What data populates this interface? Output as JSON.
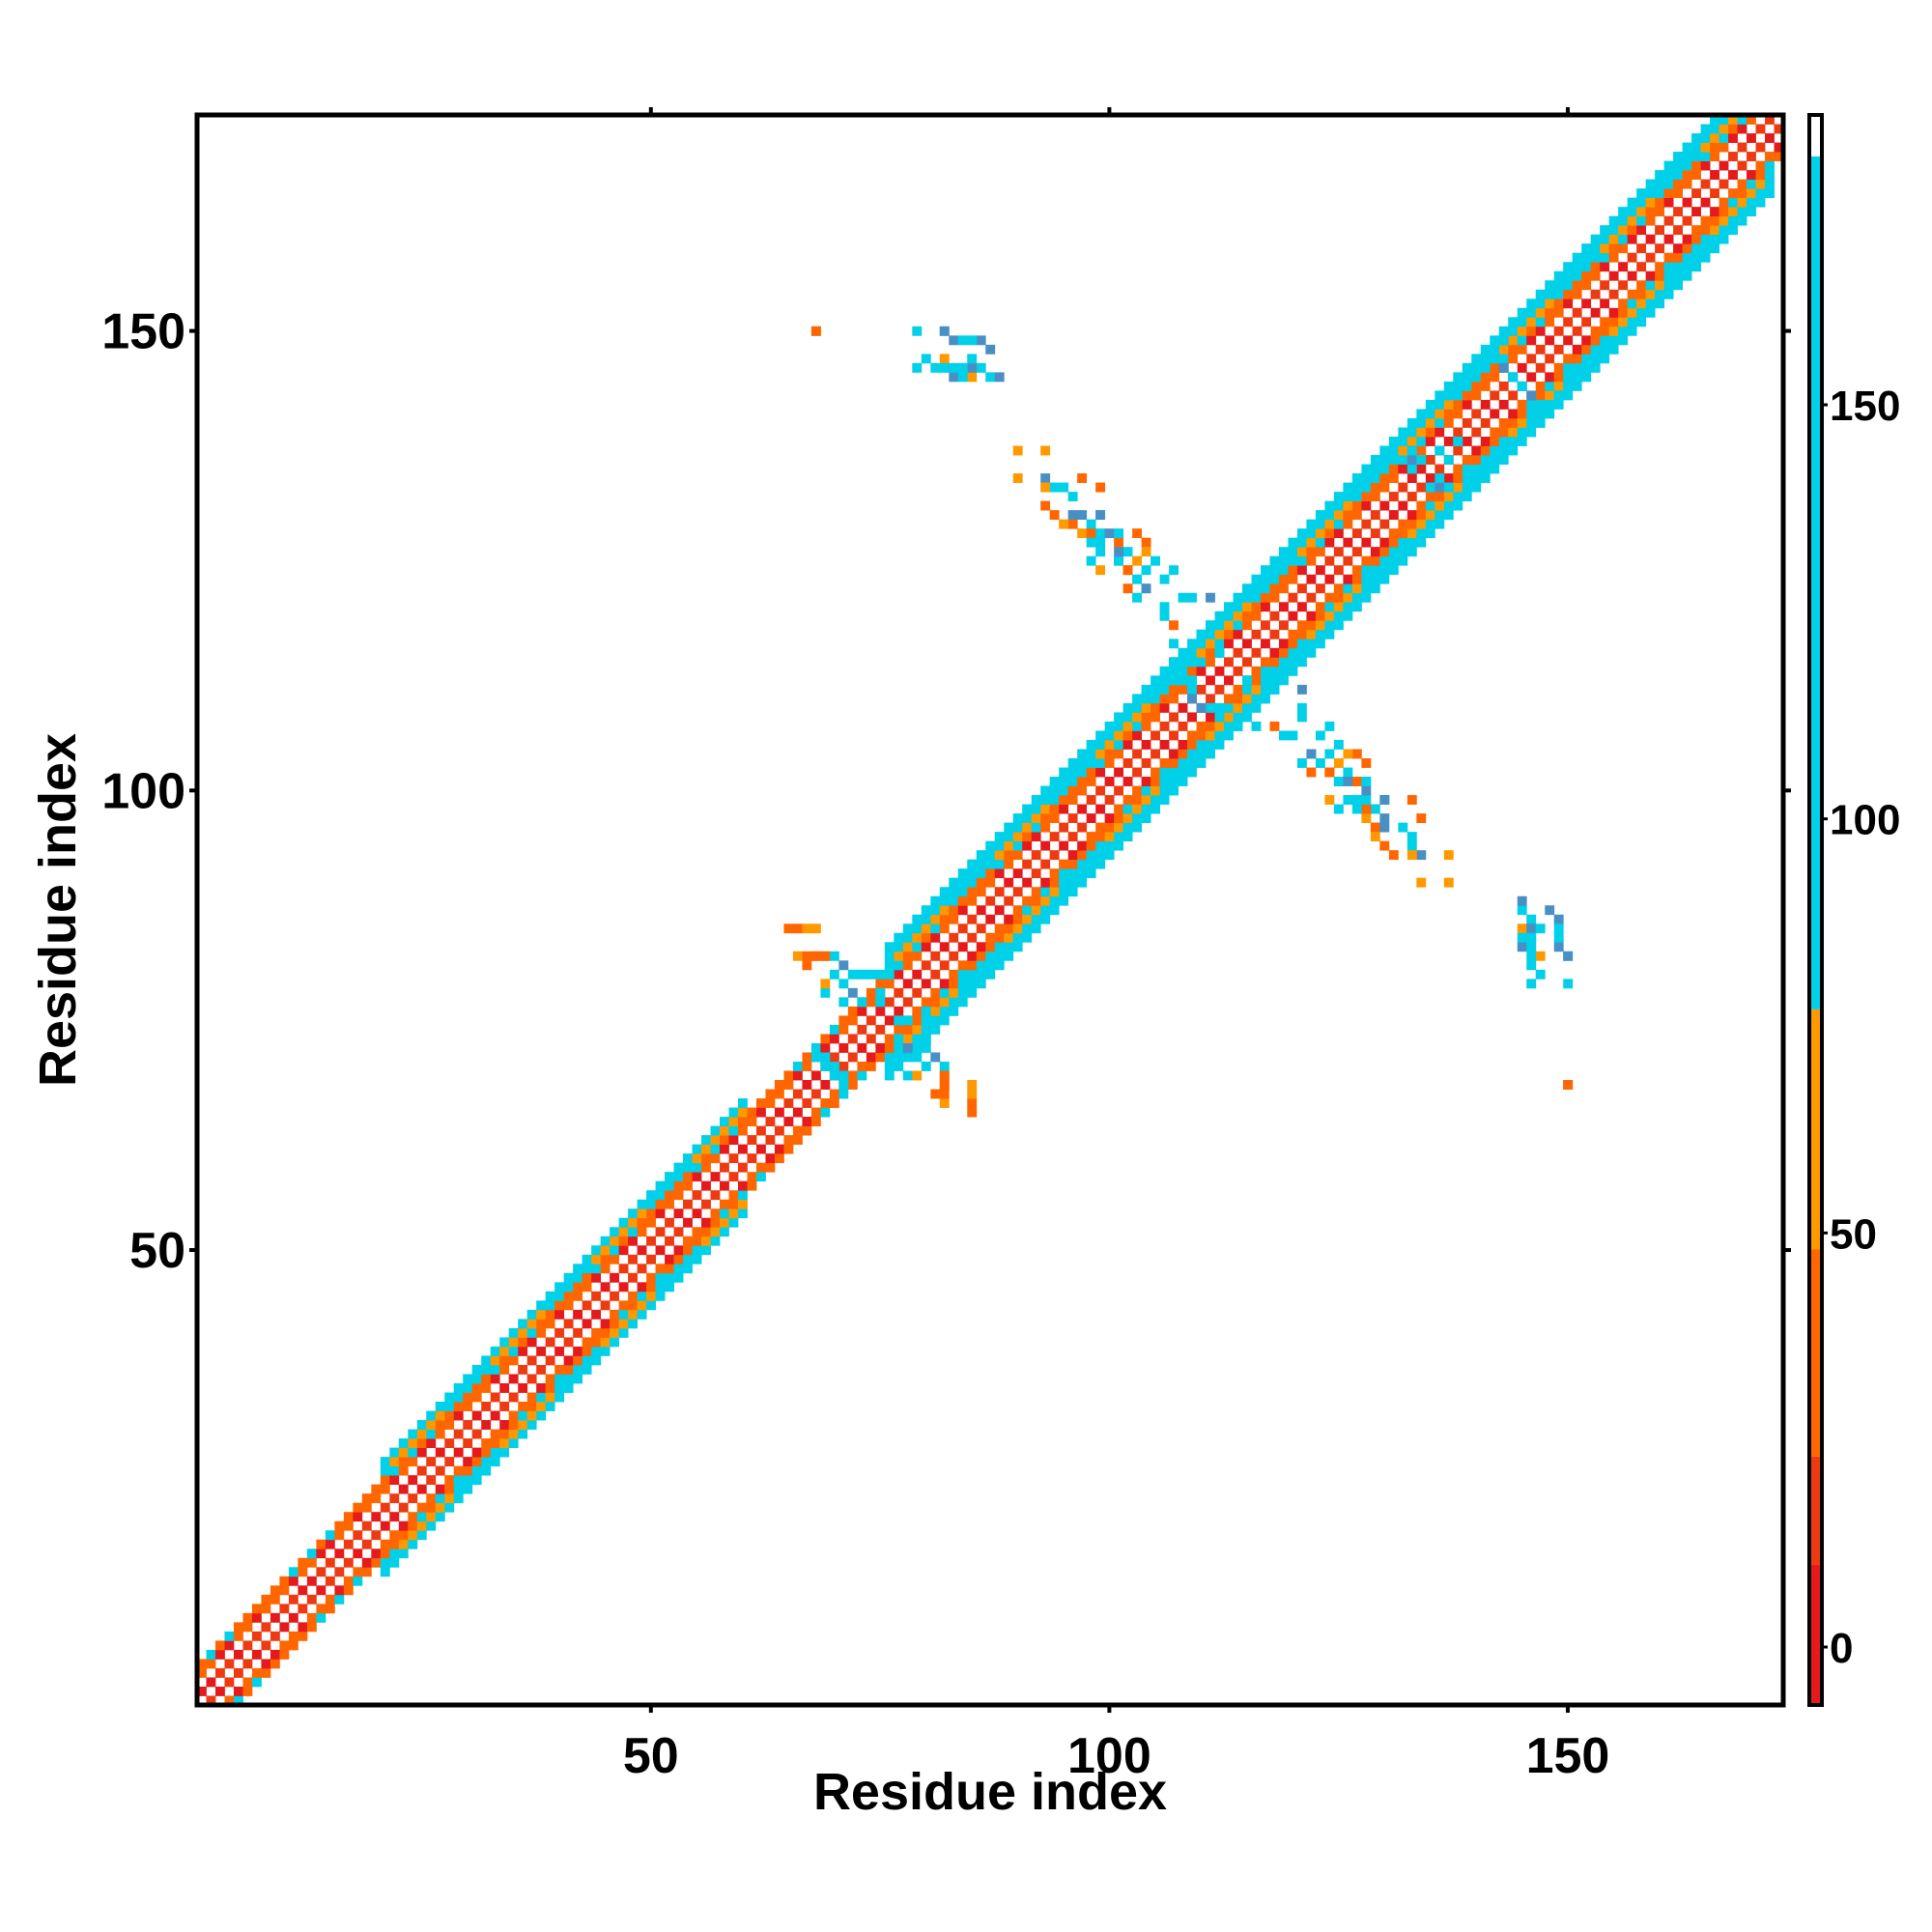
{
  "chart_data": {
    "type": "heatmap",
    "title": "",
    "xlabel": "Residue index",
    "ylabel": "Residue index",
    "xlim": [
      1,
      173
    ],
    "ylim": [
      1,
      173
    ],
    "x_ticks": [
      50,
      100,
      150
    ],
    "y_ticks": [
      50,
      100,
      150
    ],
    "grid": false,
    "colorbar": {
      "range": [
        -7,
        185
      ],
      "ticks": [
        0,
        50,
        100,
        150
      ],
      "bands": [
        {
          "from": -7,
          "to": 10,
          "color": "#e41a1c"
        },
        {
          "from": 10,
          "to": 23,
          "color": "#ee3a12"
        },
        {
          "from": 23,
          "to": 48,
          "color": "#ff6600"
        },
        {
          "from": 48,
          "to": 77,
          "color": "#ff9900"
        },
        {
          "from": 77,
          "to": 180,
          "color": "#00d0e8"
        },
        {
          "from": 180,
          "to": 185,
          "color": "#ffffff"
        }
      ]
    },
    "palette": {
      "red": "#e41a1c",
      "redorange": "#ee3a12",
      "orange": "#ff6600",
      "amber": "#ff9900",
      "cyan": "#00d0e8",
      "steelblue": "#4a8fc4"
    },
    "diagonal_band": [
      {
        "from": 1,
        "to": 20,
        "half_width": 4
      },
      {
        "from": 20,
        "to": 60,
        "half_width": 6
      },
      {
        "from": 60,
        "to": 75,
        "half_width": 4
      },
      {
        "from": 75,
        "to": 172,
        "half_width": 7
      }
    ],
    "off_diagonal_contacts": [
      {
        "i": 68,
        "j": 150,
        "c": "orange"
      },
      {
        "i": 79,
        "j": 150,
        "c": "cyan"
      },
      {
        "i": 82,
        "j": 150,
        "c": "cyan"
      },
      {
        "i": 83,
        "j": 149,
        "c": "steelblue"
      },
      {
        "i": 86,
        "j": 149,
        "c": "steelblue"
      },
      {
        "i": 80,
        "j": 147,
        "c": "cyan"
      },
      {
        "i": 82,
        "j": 147,
        "c": "amber"
      },
      {
        "i": 83,
        "j": 146,
        "c": "orange"
      },
      {
        "i": 84,
        "j": 146,
        "c": "cyan"
      },
      {
        "i": 85,
        "j": 146,
        "c": "cyan"
      },
      {
        "i": 79,
        "j": 146,
        "c": "cyan"
      },
      {
        "i": 81,
        "j": 146,
        "c": "cyan"
      },
      {
        "i": 83,
        "j": 145,
        "c": "steelblue"
      },
      {
        "i": 87,
        "j": 145,
        "c": "cyan"
      },
      {
        "i": 90,
        "j": 137,
        "c": "amber"
      },
      {
        "i": 90,
        "j": 134,
        "c": "amber"
      },
      {
        "i": 93,
        "j": 134,
        "c": "steelblue"
      },
      {
        "i": 97,
        "j": 134,
        "c": "orange"
      },
      {
        "i": 94,
        "j": 133,
        "c": "cyan"
      },
      {
        "i": 93,
        "j": 131,
        "c": "orange"
      },
      {
        "i": 94,
        "j": 130,
        "c": "orange"
      },
      {
        "i": 97,
        "j": 130,
        "c": "steelblue"
      },
      {
        "i": 99,
        "j": 130,
        "c": "cyan"
      },
      {
        "i": 96,
        "j": 129,
        "c": "orange"
      },
      {
        "i": 98,
        "j": 129,
        "c": "cyan"
      },
      {
        "i": 97,
        "j": 128,
        "c": "amber"
      },
      {
        "i": 98,
        "j": 128,
        "c": "orange"
      },
      {
        "i": 99,
        "j": 128,
        "c": "cyan"
      },
      {
        "i": 100,
        "j": 128,
        "c": "steelblue"
      },
      {
        "i": 103,
        "j": 128,
        "c": "orange"
      },
      {
        "i": 99,
        "j": 127,
        "c": "cyan"
      },
      {
        "i": 101,
        "j": 127,
        "c": "orange"
      },
      {
        "i": 104,
        "j": 127,
        "c": "orange"
      },
      {
        "i": 102,
        "j": 126,
        "c": "cyan"
      },
      {
        "i": 104,
        "j": 126,
        "c": "amber"
      },
      {
        "i": 101,
        "j": 125,
        "c": "orange"
      },
      {
        "i": 102,
        "j": 124,
        "c": "orange"
      },
      {
        "i": 104,
        "j": 124,
        "c": "cyan"
      },
      {
        "i": 105,
        "j": 125,
        "c": "cyan"
      },
      {
        "i": 107,
        "j": 124,
        "c": "cyan"
      },
      {
        "i": 104,
        "j": 122,
        "c": "cyan"
      },
      {
        "i": 108,
        "j": 121,
        "c": "cyan"
      },
      {
        "i": 109,
        "j": 121,
        "c": "cyan"
      },
      {
        "i": 111,
        "j": 121,
        "c": "steelblue"
      },
      {
        "i": 111,
        "j": 118,
        "c": "cyan"
      },
      {
        "i": 110,
        "j": 117,
        "c": "cyan"
      },
      {
        "i": 114,
        "j": 107,
        "c": "cyan"
      },
      {
        "i": 116,
        "j": 107,
        "c": "cyan"
      },
      {
        "i": 118,
        "j": 107,
        "c": "orange"
      },
      {
        "i": 120,
        "j": 106,
        "c": "cyan"
      },
      {
        "i": 119,
        "j": 106,
        "c": "cyan"
      },
      {
        "i": 123,
        "j": 106,
        "c": "cyan"
      },
      {
        "i": 122,
        "j": 104,
        "c": "steelblue"
      },
      {
        "i": 121,
        "j": 103,
        "c": "cyan"
      },
      {
        "i": 123,
        "j": 103,
        "c": "cyan"
      },
      {
        "i": 125,
        "j": 103,
        "c": "amber"
      },
      {
        "i": 122,
        "j": 102,
        "c": "orange"
      },
      {
        "i": 124,
        "j": 102,
        "c": "orange"
      },
      {
        "i": 125,
        "j": 101,
        "c": "cyan"
      },
      {
        "i": 126,
        "j": 101,
        "c": "steelblue"
      },
      {
        "i": 128,
        "j": 101,
        "c": "cyan"
      },
      {
        "i": 124,
        "j": 99,
        "c": "amber"
      },
      {
        "i": 126,
        "j": 99,
        "c": "cyan"
      },
      {
        "i": 127,
        "j": 98,
        "c": "cyan"
      },
      {
        "i": 130,
        "j": 99,
        "c": "steelblue"
      },
      {
        "i": 133,
        "j": 99,
        "c": "orange"
      },
      {
        "i": 125,
        "j": 98,
        "c": "cyan"
      },
      {
        "i": 129,
        "j": 96,
        "c": "orange"
      },
      {
        "i": 130,
        "j": 96,
        "c": "steelblue"
      },
      {
        "i": 132,
        "j": 96,
        "c": "cyan"
      },
      {
        "i": 129,
        "j": 95,
        "c": "amber"
      },
      {
        "i": 133,
        "j": 95,
        "c": "cyan"
      },
      {
        "i": 133,
        "j": 93,
        "c": "amber"
      },
      {
        "i": 137,
        "j": 93,
        "c": "amber"
      },
      {
        "i": 145,
        "j": 88,
        "c": "steelblue"
      },
      {
        "i": 148,
        "j": 87,
        "c": "steelblue"
      },
      {
        "i": 146,
        "j": 86,
        "c": "cyan"
      },
      {
        "i": 145,
        "j": 85,
        "c": "amber"
      },
      {
        "i": 146,
        "j": 85,
        "c": "steelblue"
      },
      {
        "i": 147,
        "j": 85,
        "c": "cyan"
      },
      {
        "i": 149,
        "j": 85,
        "c": "cyan"
      },
      {
        "i": 146,
        "j": 84,
        "c": "cyan"
      },
      {
        "i": 145,
        "j": 84,
        "c": "cyan"
      },
      {
        "i": 149,
        "j": 84,
        "c": "cyan"
      },
      {
        "i": 146,
        "j": 83,
        "c": "cyan"
      },
      {
        "i": 146,
        "j": 82,
        "c": "cyan"
      },
      {
        "i": 150,
        "j": 82,
        "c": "steelblue"
      },
      {
        "i": 150,
        "j": 68,
        "c": "orange"
      },
      {
        "i": 65,
        "j": 85,
        "c": "orange"
      },
      {
        "i": 66,
        "j": 85,
        "c": "orange"
      },
      {
        "i": 67,
        "j": 85,
        "c": "amber"
      },
      {
        "i": 68,
        "j": 85,
        "c": "amber"
      },
      {
        "i": 66,
        "j": 82,
        "c": "amber"
      },
      {
        "i": 68,
        "j": 82,
        "c": "orange"
      },
      {
        "i": 69,
        "j": 82,
        "c": "cyan"
      },
      {
        "i": 70,
        "j": 82,
        "c": "cyan"
      },
      {
        "i": 71,
        "j": 81,
        "c": "steelblue"
      },
      {
        "i": 72,
        "j": 80,
        "c": "cyan"
      },
      {
        "i": 73,
        "j": 80,
        "c": "cyan"
      },
      {
        "i": 74,
        "j": 80,
        "c": "cyan"
      },
      {
        "i": 70,
        "j": 80,
        "c": "cyan"
      },
      {
        "i": 75,
        "j": 80,
        "c": "cyan"
      },
      {
        "i": 76,
        "j": 80,
        "c": "cyan"
      },
      {
        "i": 77,
        "j": 75,
        "c": "cyan"
      },
      {
        "i": 78,
        "j": 75,
        "c": "cyan"
      },
      {
        "i": 77,
        "j": 73,
        "c": "cyan"
      },
      {
        "i": 78,
        "j": 72,
        "c": "steelblue"
      },
      {
        "i": 79,
        "j": 71,
        "c": "cyan"
      },
      {
        "i": 77,
        "j": 71,
        "c": "cyan"
      },
      {
        "i": 78,
        "j": 69,
        "c": "cyan"
      },
      {
        "i": 79,
        "j": 69,
        "c": "amber"
      },
      {
        "i": 82,
        "j": 69,
        "c": "orange"
      },
      {
        "i": 82,
        "j": 68,
        "c": "orange"
      },
      {
        "i": 82,
        "j": 67,
        "c": "orange"
      },
      {
        "i": 81,
        "j": 67,
        "c": "orange"
      },
      {
        "i": 68,
        "j": 71,
        "c": "cyan"
      },
      {
        "i": 69,
        "j": 71,
        "c": "cyan"
      },
      {
        "i": 70,
        "j": 70,
        "c": "cyan"
      },
      {
        "i": 69,
        "j": 70,
        "c": "orange"
      },
      {
        "i": 70,
        "j": 69,
        "c": "cyan"
      },
      {
        "i": 143,
        "j": 146,
        "c": "steelblue"
      },
      {
        "i": 144,
        "j": 145,
        "c": "cyan"
      },
      {
        "i": 145,
        "j": 144,
        "c": "cyan"
      },
      {
        "i": 143,
        "j": 149,
        "c": "cyan"
      },
      {
        "i": 149,
        "j": 143,
        "c": "cyan"
      },
      {
        "i": 148,
        "j": 142,
        "c": "cyan"
      },
      {
        "i": 147,
        "j": 142,
        "c": "cyan"
      },
      {
        "i": 146,
        "j": 141,
        "c": "cyan"
      },
      {
        "i": 135,
        "j": 133,
        "c": "cyan"
      },
      {
        "i": 136,
        "j": 133,
        "c": "steelblue"
      },
      {
        "i": 134,
        "j": 136,
        "c": "cyan"
      },
      {
        "i": 133,
        "j": 137,
        "c": "cyan"
      },
      {
        "i": 137,
        "j": 136,
        "c": "cyan"
      },
      {
        "i": 138,
        "j": 138,
        "c": "cyan"
      },
      {
        "i": 108,
        "j": 112,
        "c": "cyan"
      },
      {
        "i": 109,
        "j": 111,
        "c": "cyan"
      },
      {
        "i": 112,
        "j": 109,
        "c": "cyan"
      },
      {
        "i": 110,
        "j": 109,
        "c": "steelblue"
      },
      {
        "i": 112,
        "j": 115,
        "c": "cyan"
      },
      {
        "i": 115,
        "j": 112,
        "c": "cyan"
      }
    ]
  }
}
